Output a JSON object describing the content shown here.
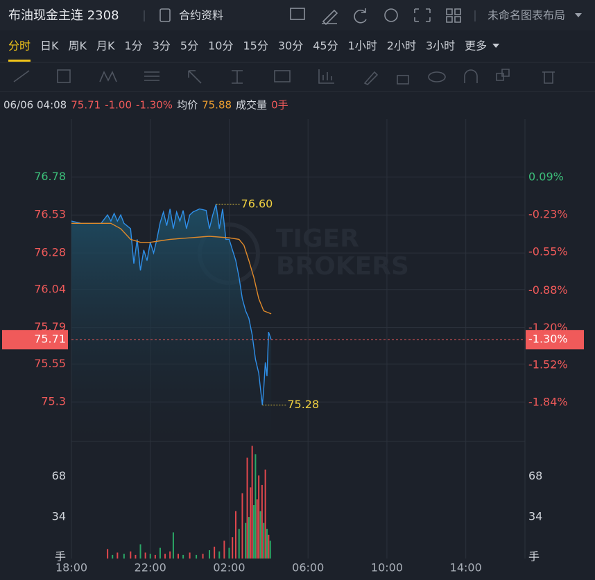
{
  "header": {
    "title": "布油现金主连 2308",
    "contract_info": "合约资料",
    "layout_name": "未命名图表布局"
  },
  "tabs": [
    "分时",
    "日K",
    "周K",
    "月K",
    "1分",
    "3分",
    "5分",
    "10分",
    "15分",
    "30分",
    "45分",
    "1小时",
    "2小时",
    "3小时",
    "更多"
  ],
  "active_tab": 0,
  "info": [
    {
      "text": "06/06 04:08",
      "color": "#d2d6dc"
    },
    {
      "text": "75.71",
      "color": "#f05a5a"
    },
    {
      "text": "-1.00",
      "color": "#f05a5a"
    },
    {
      "text": "-1.30%",
      "color": "#f05a5a"
    },
    {
      "text": "均价",
      "color": "#d2d6dc"
    },
    {
      "text": "75.88",
      "color": "#f0a030"
    },
    {
      "text": "成交量",
      "color": "#d2d6dc"
    },
    {
      "text": "0手",
      "color": "#f05a5a"
    }
  ],
  "chart_data": {
    "type": "line",
    "watermark": [
      "TIGER",
      "BROKERS"
    ],
    "xlim": [
      "18:00",
      "17:00"
    ],
    "xticks": [
      "18:00",
      "22:00",
      "02:00",
      "06:00",
      "10:00",
      "14:00"
    ],
    "ylim": [
      75.05,
      77.16
    ],
    "yticks": [
      76.78,
      76.53,
      76.28,
      76.04,
      75.79,
      75.55,
      75.3
    ],
    "y2lim": [
      -2.16,
      0.59
    ],
    "y2ticks": [
      {
        "value": 0.09,
        "label": "0.09%"
      },
      {
        "value": -0.23,
        "label": "-0.23%"
      },
      {
        "value": -0.55,
        "label": "-0.55%"
      },
      {
        "value": -0.88,
        "label": "-0.88%"
      },
      {
        "value": -1.2,
        "label": "-1.20%"
      },
      {
        "value": -1.52,
        "label": "-1.52%"
      },
      {
        "value": -1.84,
        "label": "-1.84%"
      }
    ],
    "up_color": "#3cbf7a",
    "down_color": "#f05a5a",
    "grid": true,
    "last": {
      "value": 75.71,
      "label": "75.71",
      "pct": {
        "value": -1.3,
        "label": "-1.30%"
      }
    },
    "series": [
      {
        "color": "#2f8fe8",
        "x": [
          "18:00",
          "18:30",
          "19:00",
          "19:30",
          "19:50",
          "20:00",
          "20:10",
          "20:20",
          "20:30",
          "20:40",
          "21:00",
          "21:10",
          "21:20",
          "21:30",
          "21:40",
          "21:50",
          "22:00",
          "22:10",
          "22:20",
          "22:30",
          "22:40",
          "22:50",
          "23:00",
          "23:10",
          "23:20",
          "23:30",
          "23:40",
          "23:50",
          "00:00",
          "00:10",
          "00:30",
          "00:50",
          "01:00",
          "01:10",
          "01:20",
          "01:30",
          "01:40",
          "01:50",
          "02:00",
          "02:10",
          "02:20",
          "02:30",
          "02:40",
          "02:50",
          "03:00",
          "03:10",
          "03:20",
          "03:30",
          "03:41",
          "03:45",
          "03:50",
          "03:55",
          "04:00",
          "04:08"
        ],
        "values": [
          76.49,
          76.475,
          76.475,
          76.475,
          76.53,
          76.49,
          76.54,
          76.49,
          76.53,
          76.475,
          76.44,
          76.21,
          76.37,
          76.165,
          76.3,
          76.23,
          76.35,
          76.28,
          76.37,
          76.48,
          76.55,
          76.46,
          76.57,
          76.44,
          76.55,
          76.49,
          76.56,
          76.44,
          76.53,
          76.55,
          76.57,
          76.56,
          76.44,
          76.53,
          76.6,
          76.44,
          76.57,
          76.37,
          76.37,
          76.3,
          76.23,
          76.12,
          75.98,
          75.9,
          75.85,
          75.74,
          75.58,
          75.49,
          75.28,
          75.38,
          75.56,
          75.47,
          75.76,
          75.71
        ]
      },
      {
        "color": "#e08a2a",
        "x": [
          "18:00",
          "20:00",
          "20:30",
          "21:00",
          "21:30",
          "22:00",
          "22:30",
          "23:00",
          "00:00",
          "01:00",
          "02:00",
          "02:30",
          "02:45",
          "03:00",
          "03:15",
          "03:30",
          "03:45",
          "04:08"
        ],
        "values": [
          76.475,
          76.475,
          76.44,
          76.37,
          76.35,
          76.35,
          76.36,
          76.37,
          76.38,
          76.39,
          76.38,
          76.37,
          76.33,
          76.23,
          76.12,
          75.98,
          75.9,
          75.88
        ]
      }
    ],
    "annotations": [
      {
        "x": "01:20",
        "value": 76.6,
        "label": "76.60"
      },
      {
        "x": "03:41",
        "value": 75.28,
        "label": "75.28"
      }
    ],
    "volume": {
      "ylim": [
        0,
        97
      ],
      "yticks": [
        {
          "value": 0,
          "label": "手"
        },
        34,
        68
      ],
      "x": [
        "19:50",
        "20:05",
        "20:20",
        "20:40",
        "21:00",
        "21:15",
        "21:30",
        "21:45",
        "22:00",
        "22:15",
        "22:30",
        "22:45",
        "23:00",
        "23:10",
        "23:25",
        "23:40",
        "00:00",
        "00:20",
        "00:40",
        "01:00",
        "01:15",
        "01:30",
        "01:45",
        "02:00",
        "02:10",
        "02:20",
        "02:30",
        "02:40",
        "02:50",
        "02:55",
        "03:00",
        "03:05",
        "03:10",
        "03:15",
        "03:20",
        "03:25",
        "03:30",
        "03:35",
        "03:40",
        "03:45",
        "03:50",
        "03:55",
        "04:00",
        "04:05"
      ],
      "values": [
        8,
        3,
        5,
        4,
        6,
        3,
        12,
        5,
        4,
        3,
        9,
        4,
        6,
        22,
        4,
        3,
        5,
        3,
        4,
        7,
        10,
        6,
        15,
        9,
        18,
        40,
        25,
        55,
        30,
        85,
        35,
        60,
        95,
        45,
        88,
        50,
        70,
        40,
        62,
        30,
        75,
        25,
        20,
        15
      ],
      "colors": [
        "#e0474d",
        "#2aa866",
        "#e0474d",
        "#2aa866",
        "#e0474d",
        "#e0474d",
        "#2aa866",
        "#e0474d",
        "#2aa866",
        "#e0474d",
        "#2aa866",
        "#e0474d",
        "#e0474d",
        "#2aa866",
        "#e0474d",
        "#2aa866",
        "#e0474d",
        "#2aa866",
        "#e0474d",
        "#2aa866",
        "#e0474d",
        "#2aa866",
        "#e0474d",
        "#2aa866",
        "#e0474d",
        "#e0474d",
        "#2aa866",
        "#e0474d",
        "#2aa866",
        "#e0474d",
        "#2aa866",
        "#e0474d",
        "#e0474d",
        "#2aa866",
        "#2aa866",
        "#e0474d",
        "#e0474d",
        "#2aa866",
        "#e0474d",
        "#2aa866",
        "#e0474d",
        "#2aa866",
        "#e0474d",
        "#2aa866"
      ]
    }
  }
}
